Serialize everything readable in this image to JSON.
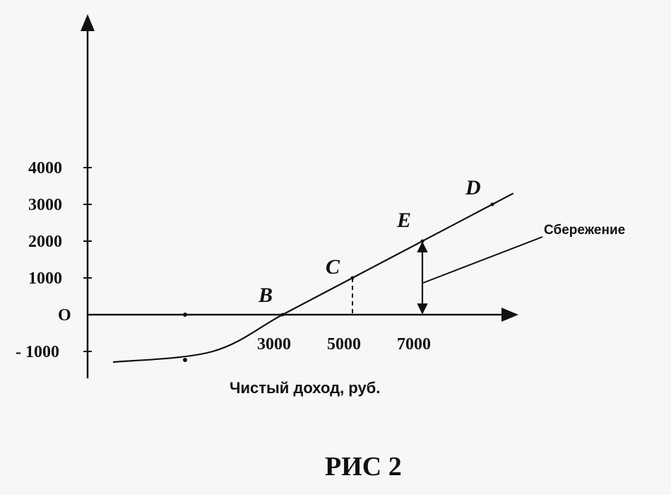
{
  "chart_data": {
    "type": "line",
    "xlabel": "Чистый доход, руб.",
    "ylabel": "",
    "x_ticks": [
      3000,
      5000,
      7000
    ],
    "x_tick_labels": [
      "3000",
      "5000",
      "7000"
    ],
    "y_ticks": [
      4000,
      3000,
      2000,
      1000,
      0,
      -1000
    ],
    "y_tick_labels": [
      "4000",
      "3000",
      "2000",
      "1000",
      "O",
      "- 1000"
    ],
    "series": [
      {
        "x": [
          -1000,
          1000,
          3000,
          5000,
          7000,
          9000
        ],
        "y": [
          -1300,
          -1000,
          0,
          1000,
          2000,
          3000
        ]
      }
    ],
    "points": [
      {
        "label": "B",
        "x": 3000,
        "y": 0
      },
      {
        "label": "C",
        "x": 5000,
        "y": 1000
      },
      {
        "label": "E",
        "x": 7000,
        "y": 2000
      },
      {
        "label": "D",
        "x": 9000,
        "y": 3000
      }
    ],
    "marker_points": [
      {
        "x": 1000,
        "y": 0
      },
      {
        "x": 1000,
        "y": -1000
      }
    ],
    "annotation": {
      "text": "Сбережение",
      "at_x": 7000
    },
    "grid": false
  },
  "caption": "РИС 2"
}
